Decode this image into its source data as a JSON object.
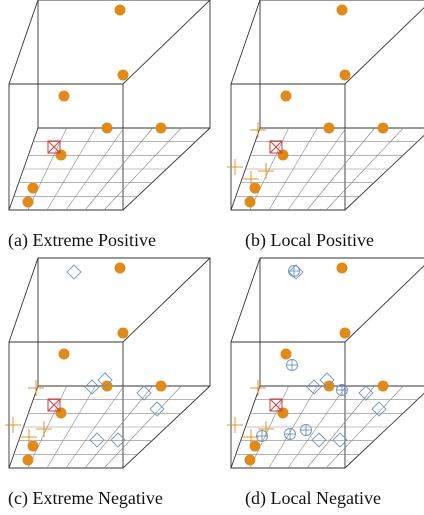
{
  "panels": [
    {
      "id": "a",
      "caption": "(a) Extreme Positive",
      "anchor": true,
      "positives": [],
      "negatives": [],
      "local_negatives": []
    },
    {
      "id": "b",
      "caption": "(b) Local Positive",
      "anchor": true,
      "positives": [
        "p1",
        "p2",
        "p3",
        "p4"
      ],
      "negatives": [],
      "local_negatives": []
    },
    {
      "id": "c",
      "caption": "(c) Extreme Negative",
      "anchor": true,
      "positives": [
        "p1",
        "p2",
        "p3",
        "p4"
      ],
      "negatives": [
        "n1",
        "n2",
        "n3",
        "n4",
        "n5",
        "n6",
        "n7"
      ],
      "local_negatives": []
    },
    {
      "id": "d",
      "caption": "(d) Local Negative",
      "anchor": true,
      "positives": [
        "p1",
        "p2",
        "p3",
        "p4"
      ],
      "negatives": [
        "n1",
        "n2",
        "n3",
        "n4",
        "n5",
        "n6",
        "n7"
      ],
      "local_negatives": [
        "l1",
        "l2",
        "l3",
        "l4",
        "l5",
        "l6"
      ]
    }
  ],
  "colors": {
    "sample": "#e08a1a",
    "anchor": "#d23b3b",
    "negative": "#6f93c0",
    "local_negative": "#6f93c0",
    "cube_edge": "#333333",
    "grid": "#888888"
  },
  "icons": {
    "sample": "filled-circle",
    "anchor": "boxed-x",
    "positive": "plus",
    "negative": "diamond",
    "local_negative": "circled-plus"
  }
}
